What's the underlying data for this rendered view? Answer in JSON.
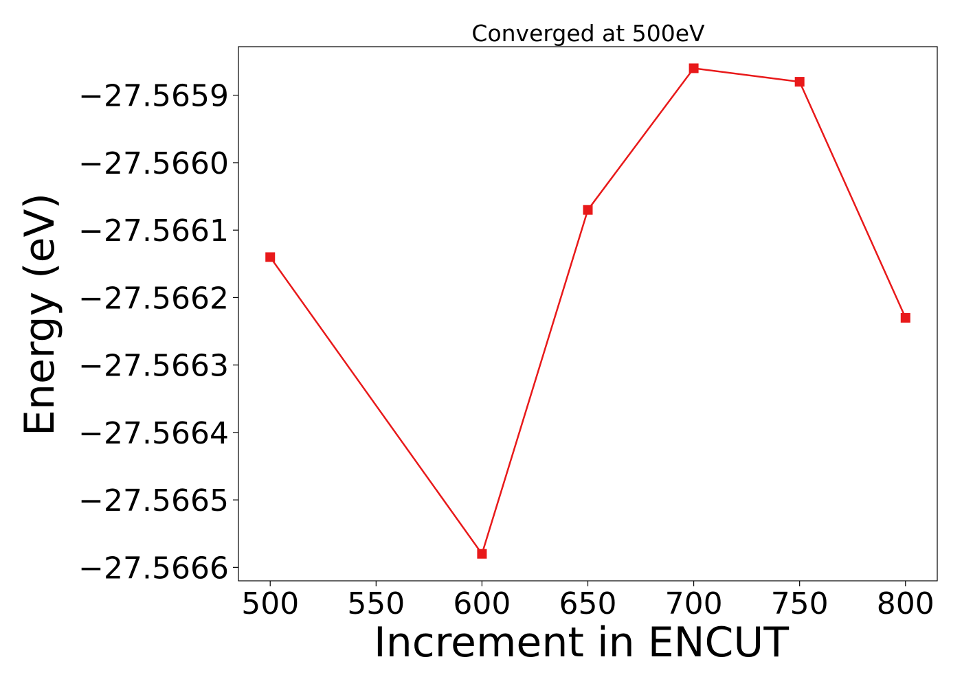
{
  "chart_data": {
    "type": "line",
    "title": "Converged at 500eV",
    "xlabel": "Increment in ENCUT",
    "ylabel": "Energy (eV)",
    "x": [
      500,
      600,
      650,
      700,
      750,
      800
    ],
    "series": [
      {
        "values": [
          -27.56614,
          -27.56658,
          -27.56607,
          -27.56586,
          -27.56588,
          -27.56623
        ],
        "color": "#e8191a",
        "marker": "square"
      }
    ],
    "xticks": [
      500,
      550,
      600,
      650,
      700,
      750,
      800
    ],
    "xtick_labels": [
      "500",
      "550",
      "600",
      "650",
      700,
      "750",
      "800"
    ],
    "yticks": [
      -27.5659,
      -27.566,
      -27.5661,
      -27.5662,
      -27.5663,
      -27.5664,
      -27.5665,
      -27.5666
    ],
    "ytick_labels": [
      "−27.5659",
      "−27.5660",
      "−27.5661",
      "−27.5662",
      "−27.5663",
      "−27.5664",
      "−27.5665",
      "−27.5666"
    ],
    "xlim": [
      485,
      815
    ],
    "ylim": [
      -27.56662,
      -27.565828
    ],
    "grid": false,
    "legend": "none"
  }
}
